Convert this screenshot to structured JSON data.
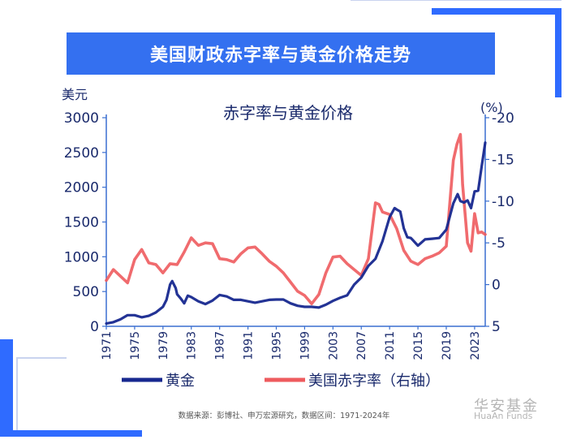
{
  "banner": {
    "title": "美国财政赤字率与黄金价格走势"
  },
  "brand": {
    "cn": "华安基金",
    "en": "HuaAn Funds"
  },
  "footnote": "数据来源：彭博社、申万宏源研究，数据区间：1971-2024年",
  "colors": {
    "gold": "#17288f",
    "deficit": "#ee5b5e",
    "accent": "#3470f0"
  },
  "chart_data": {
    "type": "line",
    "title": "赤字率与黄金价格",
    "left_axis_label": "美元",
    "right_axis_label": "(%)",
    "x_ticks": [
      "1971",
      "1975",
      "1979",
      "1983",
      "1987",
      "1991",
      "1995",
      "1999",
      "2003",
      "2007",
      "2011",
      "2015",
      "2019",
      "2023"
    ],
    "left_ticks": [
      "0",
      "500",
      "1000",
      "1500",
      "2000",
      "2500",
      "3000"
    ],
    "right_ticks": [
      "5",
      "0",
      "-5",
      "-10",
      "-15",
      "-20"
    ],
    "xlim": [
      1971,
      2024.5
    ],
    "ylim_left": [
      0,
      3000
    ],
    "ylim_right": [
      5,
      -20
    ],
    "legend": [
      "黄金",
      "美国赤字率（右轴）"
    ],
    "series": [
      {
        "name": "黄金",
        "axis": "left",
        "x": [
          1971,
          1972,
          1973,
          1974,
          1975,
          1976,
          1977,
          1978,
          1979,
          1979.5,
          1980,
          1980.3,
          1980.8,
          1981,
          1981.5,
          1982,
          1982.5,
          1983,
          1984,
          1985,
          1986,
          1987,
          1988,
          1989,
          1990,
          1991,
          1992,
          1993,
          1994,
          1995,
          1996,
          1997,
          1998,
          1999,
          2000,
          2001,
          2002,
          2003,
          2004,
          2005,
          2006,
          2007,
          2008,
          2009,
          2010,
          2011,
          2011.7,
          2012,
          2012.5,
          2013,
          2013.5,
          2014,
          2015,
          2016,
          2017,
          2018,
          2019,
          2020,
          2020.6,
          2021,
          2021.5,
          2022,
          2022.5,
          2023,
          2023.5,
          2024,
          2024.5
        ],
        "values": [
          40,
          60,
          100,
          160,
          160,
          130,
          150,
          200,
          280,
          380,
          600,
          650,
          550,
          460,
          400,
          330,
          440,
          420,
          360,
          320,
          370,
          450,
          430,
          380,
          380,
          360,
          340,
          360,
          380,
          385,
          385,
          330,
          295,
          280,
          280,
          270,
          310,
          365,
          410,
          445,
          600,
          700,
          870,
          970,
          1225,
          1570,
          1700,
          1680,
          1650,
          1410,
          1280,
          1270,
          1160,
          1250,
          1260,
          1270,
          1390,
          1770,
          1900,
          1800,
          1780,
          1810,
          1700,
          1940,
          1950,
          2300,
          2640
        ]
      },
      {
        "name": "美国赤字率（右轴）",
        "axis": "right",
        "x": [
          1971,
          1972,
          1973,
          1974,
          1975,
          1976,
          1977,
          1978,
          1979,
          1980,
          1981,
          1982,
          1983,
          1984,
          1985,
          1986,
          1987,
          1988,
          1989,
          1990,
          1991,
          1992,
          1993,
          1994,
          1995,
          1996,
          1997,
          1998,
          1999,
          2000,
          2001,
          2002,
          2003,
          2004,
          2005,
          2006,
          2007,
          2008,
          2009,
          2009.5,
          2010,
          2011,
          2012,
          2013,
          2014,
          2015,
          2016,
          2017,
          2018,
          2019,
          2020,
          2020.5,
          2021,
          2021.3,
          2022,
          2022.5,
          2023,
          2023.5,
          2024,
          2024.5
        ],
        "values": [
          -0.5,
          -1.8,
          -1.0,
          -0.2,
          -3.0,
          -4.2,
          -2.6,
          -2.4,
          -1.4,
          -2.5,
          -2.4,
          -3.9,
          -5.6,
          -4.7,
          -5.0,
          -4.9,
          -3.1,
          -3.0,
          -2.7,
          -3.7,
          -4.4,
          -4.5,
          -3.7,
          -2.8,
          -2.2,
          -1.4,
          -0.3,
          0.8,
          1.3,
          2.3,
          1.2,
          -1.4,
          -3.3,
          -3.4,
          -2.5,
          -1.8,
          -1.1,
          -3.1,
          -9.8,
          -9.6,
          -8.7,
          -8.4,
          -6.7,
          -4.1,
          -2.8,
          -2.4,
          -3.1,
          -3.4,
          -3.8,
          -4.6,
          -14.9,
          -16.8,
          -18.0,
          -12.0,
          -5.0,
          -4.0,
          -8.5,
          -6.2,
          -6.3,
          -6.0
        ]
      }
    ]
  }
}
